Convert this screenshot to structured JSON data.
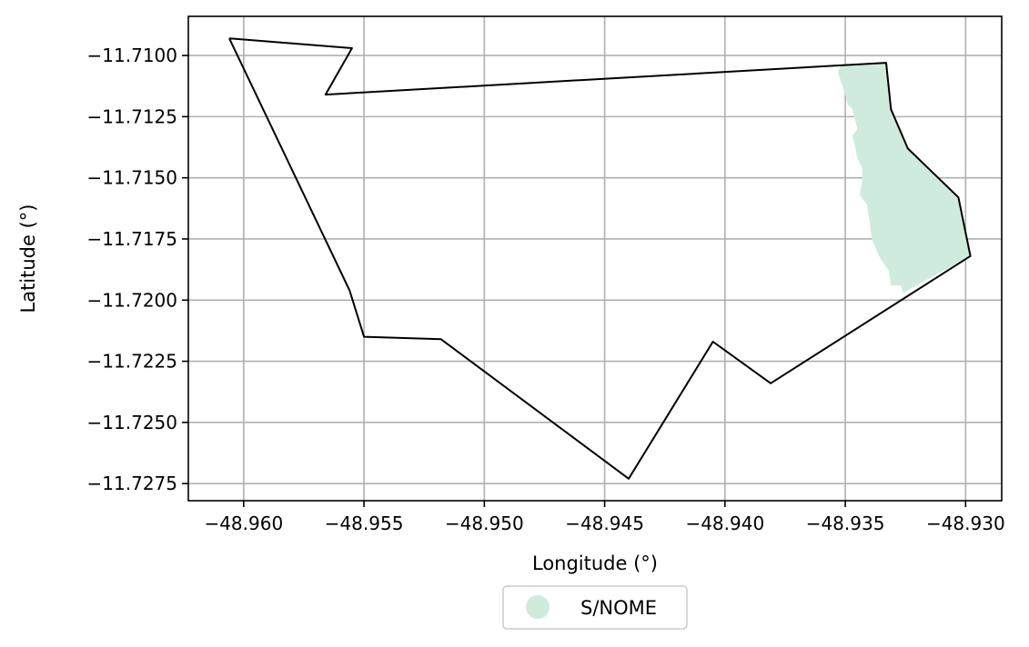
{
  "chart_data": {
    "type": "map",
    "xlabel": "Longitude (°)",
    "ylabel": "Latitude (°)",
    "xlim": [
      -48.9623,
      -48.9285
    ],
    "ylim": [
      -11.7282,
      -11.7084
    ],
    "grid": true,
    "x_ticks": [
      -48.96,
      -48.955,
      -48.95,
      -48.945,
      -48.94,
      -48.935,
      -48.93
    ],
    "x_tick_labels": [
      "−48.960",
      "−48.955",
      "−48.950",
      "−48.945",
      "−48.940",
      "−48.935",
      "−48.930"
    ],
    "y_ticks": [
      -11.71,
      -11.7125,
      -11.715,
      -11.7175,
      -11.72,
      -11.7225,
      -11.725,
      -11.7275
    ],
    "y_tick_labels": [
      "−11.7100",
      "−11.7125",
      "−11.7150",
      "−11.7175",
      "−11.7200",
      "−11.7225",
      "−11.7250",
      "−11.7275"
    ],
    "boundary": {
      "color": "#000000",
      "coords": [
        [
          -48.9606,
          -11.7093
        ],
        [
          -48.9555,
          -11.7097
        ],
        [
          -48.9566,
          -11.7116
        ],
        [
          -48.9333,
          -11.7103
        ],
        [
          -48.9331,
          -11.7122
        ],
        [
          -48.9324,
          -11.7138
        ],
        [
          -48.9303,
          -11.7158
        ],
        [
          -48.9298,
          -11.7182
        ],
        [
          -48.9381,
          -11.7234
        ],
        [
          -48.9405,
          -11.7217
        ],
        [
          -48.944,
          -11.7273
        ],
        [
          -48.9518,
          -11.7216
        ],
        [
          -48.955,
          -11.7215
        ],
        [
          -48.9556,
          -11.7196
        ],
        [
          -48.9606,
          -11.7093
        ]
      ]
    },
    "layers": [
      {
        "name": "S/NOME",
        "color": "#cfebde",
        "coords": [
          [
            -48.9352,
            -11.7104
          ],
          [
            -48.9333,
            -11.7103
          ],
          [
            -48.9331,
            -11.7122
          ],
          [
            -48.9324,
            -11.7138
          ],
          [
            -48.9303,
            -11.7158
          ],
          [
            -48.9298,
            -11.7182
          ],
          [
            -48.9326,
            -11.7197
          ],
          [
            -48.9327,
            -11.7194
          ],
          [
            -48.9331,
            -11.7194
          ],
          [
            -48.9332,
            -11.7188
          ],
          [
            -48.9336,
            -11.7182
          ],
          [
            -48.9339,
            -11.7175
          ],
          [
            -48.934,
            -11.7167
          ],
          [
            -48.9341,
            -11.7161
          ],
          [
            -48.9344,
            -11.7157
          ],
          [
            -48.9343,
            -11.7151
          ],
          [
            -48.9343,
            -11.7146
          ],
          [
            -48.9345,
            -11.7142
          ],
          [
            -48.9346,
            -11.7137
          ],
          [
            -48.9347,
            -11.7133
          ],
          [
            -48.9345,
            -11.713
          ],
          [
            -48.9346,
            -11.7126
          ],
          [
            -48.9347,
            -11.7122
          ],
          [
            -48.9349,
            -11.712
          ],
          [
            -48.935,
            -11.7116
          ],
          [
            -48.9351,
            -11.7113
          ],
          [
            -48.9352,
            -11.711
          ],
          [
            -48.9353,
            -11.7107
          ]
        ]
      }
    ],
    "legend": {
      "position": "bottom-center",
      "entries": [
        "S/NOME"
      ]
    }
  }
}
